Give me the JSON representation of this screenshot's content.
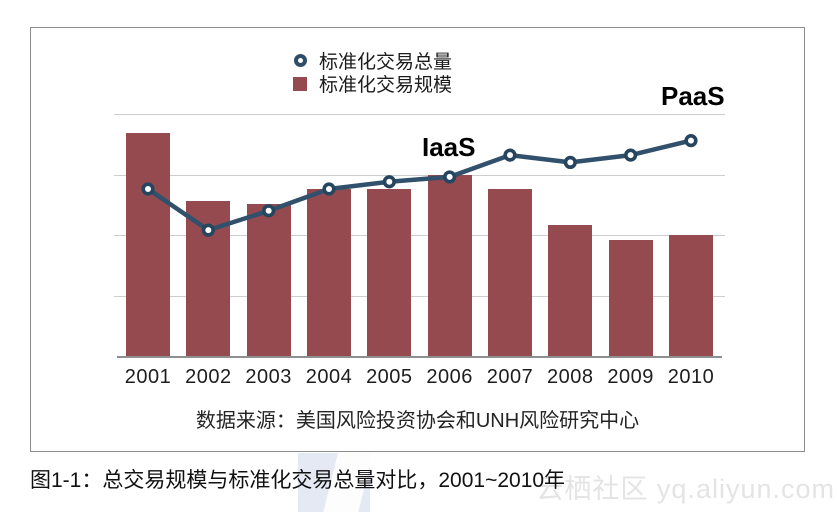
{
  "figure": {
    "caption": "图1-1：总交易规模与标准化交易总量对比，2001~2010年",
    "watermark": "云栖社区 yq.aliyun.com"
  },
  "chart_data": {
    "type": "bar",
    "title": "",
    "xlabel": "",
    "ylabel": "",
    "categories": [
      "2001",
      "2002",
      "2003",
      "2004",
      "2005",
      "2006",
      "2007",
      "2008",
      "2009",
      "2010"
    ],
    "series": [
      {
        "name": "标准化交易规模",
        "type": "bar",
        "color": "#954a50",
        "values": [
          92,
          64,
          63,
          69,
          69,
          75,
          69,
          54,
          48,
          50
        ]
      },
      {
        "name": "标准化交易总量",
        "type": "line",
        "color": "#30506b",
        "values": [
          69,
          52,
          60,
          69,
          72,
          74,
          83,
          80,
          83,
          89
        ]
      }
    ],
    "ylim": [
      0,
      100
    ],
    "yaxis_ticks_shown": false,
    "grid": true,
    "gridlines_y": [
      100,
      75,
      50,
      25
    ],
    "legend_position": "top-center",
    "annotations": [
      {
        "text": "IaaS",
        "near": "line point 2006-2007"
      },
      {
        "text": "PaaS",
        "near": "line point 2010"
      }
    ],
    "source": "数据来源：美国风险投资协会和UNH风险研究中心",
    "colors": {
      "bar": "#954a50",
      "line": "#30506b",
      "marker_ring": "#26455f",
      "marker_fill": "#ffffff"
    }
  }
}
